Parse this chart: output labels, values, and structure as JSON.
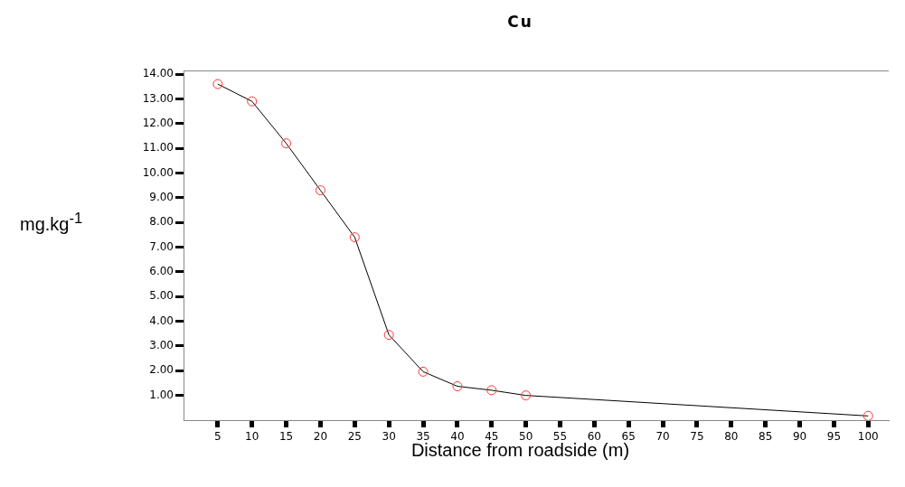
{
  "chart_data": {
    "type": "line",
    "title": "Cu",
    "xlabel": "Distance from roadside (m)",
    "ylabel": "mg.kg$^{-1}$",
    "x": [
      5,
      10,
      15,
      20,
      25,
      30,
      35,
      40,
      45,
      50,
      100
    ],
    "series": [
      {
        "color": "#000000",
        "colors": [
          "#ff3333",
          "#ff3333",
          "#ff3333",
          "#ff3333",
          "#ff3333",
          "#ff3333",
          "#ff3333",
          "#ff3333",
          "#ff3333",
          "#ff3333",
          "#ff3333"
        ],
        "values": [
          13.6,
          12.9,
          11.2,
          9.3,
          7.4,
          3.45,
          1.96,
          1.37,
          1.21,
          1.0,
          0.17
        ]
      }
    ],
    "xlim": [
      0,
      103
    ],
    "xticks": [
      5,
      10,
      15,
      20,
      25,
      30,
      35,
      40,
      45,
      50,
      55,
      60,
      65,
      70,
      75,
      80,
      85,
      90,
      95,
      100
    ],
    "ylim": [
      0,
      14.15
    ],
    "yticks": [
      {
        "value": 1,
        "label": "1.00"
      },
      {
        "value": 2,
        "label": "2.00"
      },
      {
        "value": 3,
        "label": "3.00"
      },
      {
        "value": 4,
        "label": "4.00"
      },
      {
        "value": 5,
        "label": "5.00"
      },
      {
        "value": 6,
        "label": "6.00"
      },
      {
        "value": 7,
        "label": "7.00"
      },
      {
        "value": 8,
        "label": "8.00"
      },
      {
        "value": 9,
        "label": "9.00"
      },
      {
        "value": 10,
        "label": "10.00"
      },
      {
        "value": 11,
        "label": "11.00"
      },
      {
        "value": 12,
        "label": "12.00"
      },
      {
        "value": 13,
        "label": "13.00"
      },
      {
        "value": 14,
        "label": "14.00"
      }
    ],
    "grid": false,
    "legend": false,
    "marker": "circle",
    "line_style": "solid"
  }
}
